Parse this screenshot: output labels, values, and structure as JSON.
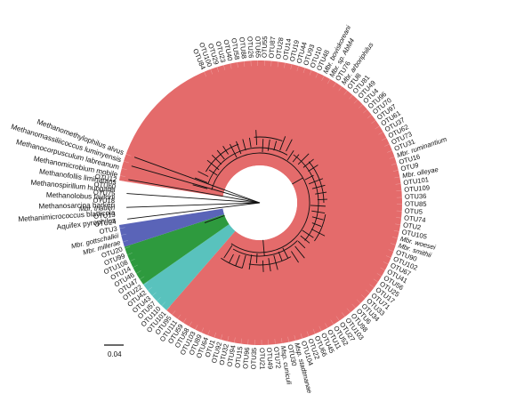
{
  "figure": {
    "scale_bar_label": "0.04",
    "colors": {
      "otu_clade": "#e46b6b",
      "methanosarcina_clade": "#5a64b8",
      "methanomicrobia_clade": "#2e9a3e",
      "methanomassiliicoccus_clade": "#59c2bd",
      "branch": "#111111"
    },
    "outgroup_labels": [
      "Aquifex pyrophilus",
      "Methanimicrococcus blatticola",
      "Methanosarcina barkeri",
      "Methanolobus taylorii",
      "Methanospirillum hungatei",
      "Methanofollis liminatans",
      "Methanomicrobium mobile",
      "Methanocorpusculum labreanum",
      "Methanomassiliicoccus luminyensis",
      "Methanomethylophilus alvus"
    ],
    "otu_labels": [
      "OTU12",
      "OTU60",
      "OTU75",
      "OTU18",
      "Mbr. thaueri",
      "OTU13",
      "OTU24",
      "OTU3",
      "Mbr. gottschalkii",
      "Mbr. millerae",
      "OTU20",
      "OTU99",
      "OTU108",
      "OTU14",
      "OTU46",
      "OTU47",
      "OTU22",
      "OTU42",
      "OTU43",
      "OTU57",
      "OTU110",
      "OTU101",
      "OTU95",
      "OTU111",
      "OTU59",
      "OTU58",
      "OTU103",
      "OTU89",
      "OTU64",
      "OTU1",
      "OTU92",
      "OTU32",
      "OTU94",
      "OTU15",
      "OTU96",
      "OTU35",
      "OTU21",
      "OTU49",
      "OTU72",
      "Msp. cuniculi",
      "OTU30",
      "Msp. stadtmanae",
      "OTU104",
      "OTU22",
      "OTU66",
      "OTU45",
      "OTU11",
      "OTU52",
      "OTU27",
      "OTU103",
      "OTU98",
      "OTU6",
      "OTU34",
      "OTU33",
      "OTU71",
      "OTU17",
      "OTU25",
      "OTU56",
      "OTU41",
      "OTU67",
      "OTU102",
      "OTU90",
      "Mbr. smithii",
      "Mbr. woesei",
      "OTU105",
      "OTU2",
      "OTU74",
      "OTU5",
      "OTU85",
      "OTU36",
      "OTU109",
      "OTU101",
      "Mbr. olleyae",
      "OTU9",
      "OTU16",
      "Mbr. ruminantium",
      "OTU31",
      "OTU73",
      "OTU62",
      "OTU37",
      "OTU61",
      "OTU97",
      "OTU70",
      "OTU96",
      "OTU4",
      "OTU49",
      "OTU81",
      "OTU8",
      "Mbr. arboriphilus",
      "OTU76",
      "Mbr. sp. AbM4",
      "Mbr. boviskoreani",
      "OTU48",
      "OTU10",
      "OTU93",
      "OTU44",
      "OTU19",
      "OTU14",
      "OTU28",
      "OTU87",
      "OTU55",
      "OTU65",
      "OTU26",
      "OTU88",
      "OTU58",
      "OTU40",
      "OTU23",
      "OTU29",
      "OTU100",
      "OTU84"
    ]
  }
}
